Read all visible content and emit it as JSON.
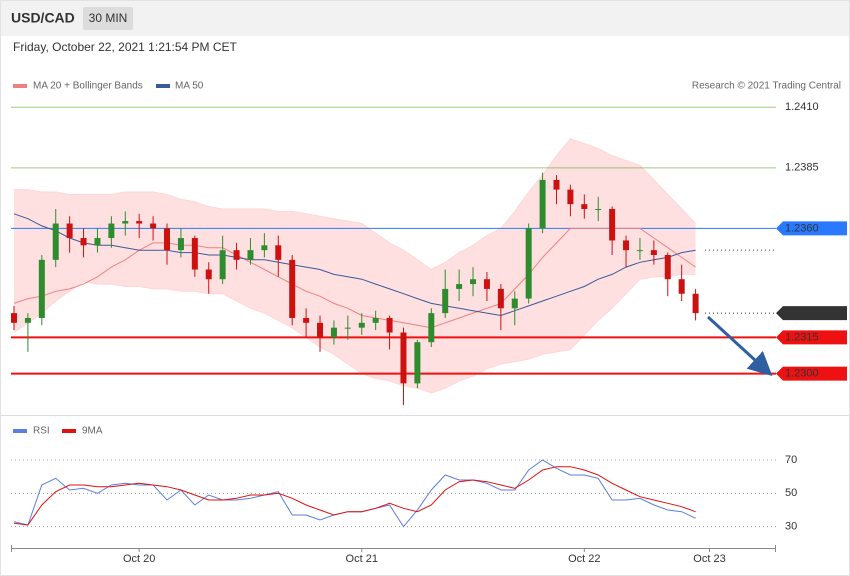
{
  "header": {
    "symbol": "USD/CAD",
    "interval": "30 MIN",
    "timestamp": "Friday, October 22, 2021 1:21:54 PM CET",
    "credit": "Research © 2021 Trading Central"
  },
  "chart_data": [
    {
      "type": "candlestick",
      "categories": [
        null,
        null,
        null,
        null,
        null,
        null,
        null,
        null,
        null,
        "Oct 20",
        null,
        null,
        null,
        null,
        null,
        null,
        null,
        null,
        null,
        null,
        null,
        null,
        null,
        null,
        null,
        "Oct 21",
        null,
        null,
        null,
        null,
        null,
        null,
        null,
        null,
        null,
        null,
        null,
        null,
        null,
        null,
        null,
        "Oct 22",
        null,
        null,
        null,
        null,
        null,
        null,
        null,
        null,
        "Oct 23"
      ],
      "open": [
        1.2325,
        1.2321,
        1.2323,
        1.2347,
        1.2362,
        1.2356,
        1.2353,
        1.2356,
        1.2362,
        1.2363,
        1.2362,
        1.236,
        1.2351,
        1.2356,
        1.2343,
        1.2339,
        1.2351,
        1.2347,
        1.2351,
        1.2353,
        1.2347,
        1.2323,
        1.2321,
        1.2315,
        1.2319,
        1.2319,
        1.2321,
        1.2323,
        1.2317,
        1.2296,
        1.2313,
        1.2325,
        1.2335,
        1.2337,
        1.2339,
        1.2335,
        1.2327,
        1.2331,
        1.236,
        1.238,
        1.2376,
        1.237,
        1.2368,
        1.2368,
        1.2355,
        1.2351,
        1.2351,
        1.2349,
        1.2339,
        1.2333,
        null
      ],
      "high": [
        1.2328,
        1.2325,
        1.2349,
        1.2368,
        1.2365,
        1.236,
        1.236,
        1.2365,
        1.2367,
        1.2366,
        1.2365,
        1.2362,
        1.236,
        1.2357,
        1.2346,
        1.2357,
        1.2354,
        1.2356,
        1.2358,
        1.2357,
        1.2349,
        1.2327,
        1.2324,
        1.2322,
        1.2324,
        1.2325,
        1.2326,
        1.2324,
        1.2319,
        1.2314,
        1.2327,
        1.2343,
        1.2343,
        1.2344,
        1.2342,
        1.2337,
        1.2334,
        1.2362,
        1.2383,
        1.2382,
        1.2378,
        1.2374,
        1.2373,
        1.2369,
        1.2357,
        1.2356,
        1.2355,
        1.235,
        1.2345,
        1.2335,
        null
      ],
      "low": [
        1.2318,
        1.2309,
        1.232,
        1.2344,
        1.235,
        1.2348,
        1.235,
        1.2352,
        1.2357,
        1.2356,
        1.2355,
        1.2345,
        1.2348,
        1.234,
        1.2333,
        1.2337,
        1.2343,
        1.2345,
        1.2348,
        1.234,
        1.232,
        1.2315,
        1.2309,
        1.2312,
        1.2314,
        1.2316,
        1.2318,
        1.231,
        1.2287,
        1.2294,
        1.2311,
        1.2323,
        1.233,
        1.2332,
        1.233,
        1.2318,
        1.232,
        1.2329,
        1.2358,
        1.237,
        1.2365,
        1.2364,
        1.2363,
        1.2349,
        1.2344,
        1.2347,
        1.2345,
        1.2332,
        1.233,
        1.2322,
        null
      ],
      "close": [
        1.2321,
        1.2323,
        1.2347,
        1.2362,
        1.2356,
        1.2353,
        1.2356,
        1.2362,
        1.2363,
        1.2362,
        1.236,
        1.2351,
        1.2356,
        1.2343,
        1.2339,
        1.2351,
        1.2347,
        1.2351,
        1.2353,
        1.2347,
        1.2323,
        1.2321,
        1.2315,
        1.2319,
        1.2319,
        1.2321,
        1.2323,
        1.2317,
        1.2296,
        1.2313,
        1.2325,
        1.2335,
        1.2337,
        1.2339,
        1.2335,
        1.2327,
        1.2331,
        1.236,
        1.238,
        1.2376,
        1.237,
        1.2368,
        1.2368,
        1.2355,
        1.2351,
        1.2351,
        1.2349,
        1.2339,
        1.2333,
        1.2325,
        null
      ],
      "up_color": "#2e8b2e",
      "down_color": "#cc1111",
      "ma20": {
        "name": "MA 20 + Bollinger Bands",
        "color": "#f08080",
        "band_color": "#ffd6d6",
        "values": [
          1.2329,
          1.2331,
          1.2332,
          1.2334,
          1.2335,
          1.2337,
          1.234,
          1.2344,
          1.2347,
          1.2351,
          1.2354,
          1.2354,
          1.2353,
          1.2353,
          1.2352,
          1.2352,
          1.2349,
          1.2346,
          1.2343,
          1.234,
          1.2337,
          1.2334,
          1.2332,
          1.2329,
          1.2327,
          1.2324,
          1.2323,
          1.2322,
          1.2321,
          1.232,
          1.2319,
          1.2321,
          1.2323,
          1.2325,
          1.2327,
          1.2329,
          1.2335,
          1.2341,
          1.2348,
          1.2354,
          1.236,
          1.236,
          1.236,
          1.236,
          1.236,
          1.236,
          1.2356,
          1.2352,
          1.2348,
          1.2344,
          null
        ],
        "upper": [
          1.2376,
          1.2376,
          1.2375,
          1.2375,
          1.2374,
          1.2374,
          1.2374,
          1.2374,
          1.2375,
          1.2375,
          1.2375,
          1.2374,
          1.2372,
          1.2371,
          1.2369,
          1.2368,
          1.2368,
          1.2368,
          1.2368,
          1.2367,
          1.2367,
          1.2366,
          1.2365,
          1.2364,
          1.2363,
          1.2362,
          1.2358,
          1.2354,
          1.2351,
          1.2347,
          1.2343,
          1.2346,
          1.235,
          1.2353,
          1.2357,
          1.236,
          1.2367,
          1.2375,
          1.2382,
          1.239,
          1.2397,
          1.2395,
          1.2393,
          1.239,
          1.2388,
          1.2386,
          1.238,
          1.2374,
          1.2368,
          1.2362,
          null
        ],
        "lower": [
          1.2317,
          1.2321,
          1.2325,
          1.233,
          1.2334,
          1.2338,
          1.2337,
          1.2337,
          1.2336,
          1.2336,
          1.2335,
          1.2335,
          1.2334,
          1.2334,
          1.2333,
          1.2333,
          1.233,
          1.2327,
          1.2325,
          1.2322,
          1.2319,
          1.2315,
          1.2311,
          1.2308,
          1.2304,
          1.23,
          1.2298,
          1.2297,
          1.2295,
          1.2294,
          1.2292,
          1.2294,
          1.2297,
          1.2299,
          1.2302,
          1.2304,
          1.2305,
          1.2306,
          1.2308,
          1.2309,
          1.231,
          1.2316,
          1.2322,
          1.2327,
          1.2333,
          1.2339,
          1.234,
          1.234,
          1.2341,
          1.2341,
          null
        ]
      },
      "ma50": {
        "name": "MA 50",
        "color": "#3a5a9a",
        "values": [
          1.2366,
          1.2364,
          1.2361,
          1.2359,
          1.2356,
          1.2354,
          1.2353,
          1.2353,
          1.2352,
          1.2351,
          1.2351,
          1.2351,
          1.235,
          1.235,
          1.2349,
          1.2349,
          1.2348,
          1.2347,
          1.2347,
          1.2346,
          1.2345,
          1.2344,
          1.2343,
          1.2341,
          1.234,
          1.2339,
          1.2337,
          1.2335,
          1.2333,
          1.2331,
          1.2329,
          1.2328,
          1.2327,
          1.2326,
          1.2325,
          1.2324,
          1.2326,
          1.2328,
          1.233,
          1.2332,
          1.2334,
          1.2336,
          1.2339,
          1.2341,
          1.2344,
          1.2346,
          1.2347,
          1.2348,
          1.235,
          1.2351,
          null
        ]
      },
      "levels": [
        {
          "value": 1.241,
          "label": "1.2410",
          "color": "#5a9e1a",
          "line": "solid",
          "box": false
        },
        {
          "value": 1.2385,
          "color": "#5a9e1a",
          "line": "solid",
          "box": false
        },
        {
          "value": 1.236,
          "label": "1.2360",
          "color": "#2979ff",
          "line": "solid",
          "box": true
        },
        {
          "value": 1.2325,
          "color": "#333333",
          "line": "dotted",
          "box": true
        },
        {
          "value": 1.2315,
          "color": "#ee1111",
          "line": "solid",
          "box": true
        },
        {
          "value": 1.23,
          "label": "1.2300",
          "color": "#ee1111",
          "line": "solid",
          "box": true
        }
      ],
      "ylim": [
        1.2285,
        1.2413
      ]
    },
    {
      "type": "line",
      "series": [
        {
          "name": "RSI",
          "color": "#5b7fe0",
          "values": [
            33,
            31,
            55,
            59,
            52,
            53,
            50,
            55,
            56,
            55,
            55,
            46,
            52,
            43,
            49,
            46,
            46,
            47,
            49,
            51,
            37,
            37,
            34,
            37,
            39,
            39,
            41,
            43,
            30,
            40,
            52,
            61,
            58,
            58,
            56,
            52,
            52,
            64,
            70,
            65,
            61,
            61,
            59,
            46,
            46,
            47,
            43,
            40,
            39,
            35,
            null
          ]
        },
        {
          "name": "9MA",
          "color": "#e01010",
          "values": [
            32,
            31,
            43,
            51,
            55,
            55,
            54,
            54,
            55,
            56,
            55,
            54,
            52,
            49,
            46,
            46,
            47,
            49,
            49,
            50,
            47,
            43,
            40,
            37,
            39,
            39,
            41,
            44,
            41,
            39,
            43,
            52,
            57,
            58,
            57,
            55,
            53,
            58,
            64,
            66,
            66,
            64,
            61,
            56,
            52,
            48,
            46,
            44,
            42,
            39,
            null
          ]
        }
      ],
      "ylim": [
        22,
        79
      ],
      "yticks": [
        30,
        50,
        70
      ],
      "grid": true
    }
  ]
}
